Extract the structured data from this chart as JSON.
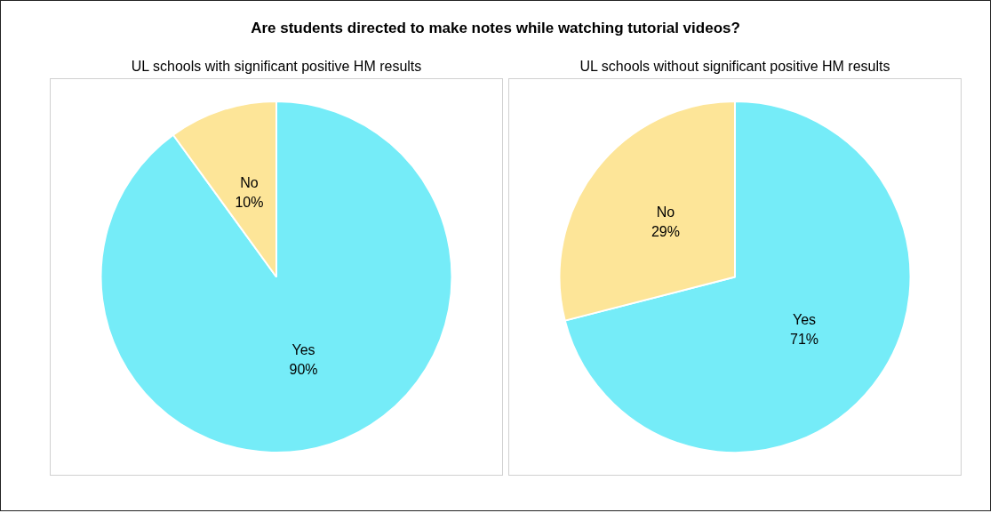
{
  "chart_data": [
    {
      "type": "pie",
      "title": "Are students directed to make notes while watching tutorial videos?",
      "subtitle": "UL schools with significant positive HM results",
      "categories": [
        "Yes",
        "No"
      ],
      "values": [
        90,
        10
      ],
      "colors": [
        "#75ecf8",
        "#fde598"
      ],
      "value_labels": [
        "90%",
        "10%"
      ],
      "legend": false
    },
    {
      "type": "pie",
      "subtitle": "UL schools without significant positive HM results",
      "categories": [
        "Yes",
        "No"
      ],
      "values": [
        71,
        29
      ],
      "colors": [
        "#75ecf8",
        "#fde598"
      ],
      "value_labels": [
        "71%",
        "29%"
      ],
      "legend": false
    }
  ]
}
